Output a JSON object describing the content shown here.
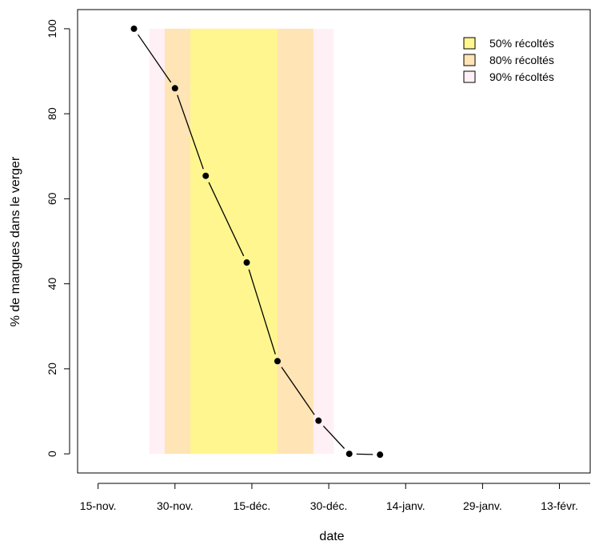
{
  "chart_data": {
    "type": "line",
    "xlabel": "date",
    "ylabel": "% de mangues dans le verger",
    "x_ticks": [
      "15-nov.",
      "30-nov.",
      "15-déc.",
      "30-déc.",
      "14-janv.",
      "29-janv.",
      "13-févr."
    ],
    "y_ticks": [
      "0",
      "20",
      "40",
      "60",
      "80",
      "100"
    ],
    "xlim": [
      "2023-11-11",
      "2024-02-19"
    ],
    "ylim": [
      -4.5,
      104.5
    ],
    "series": [
      {
        "x": [
          "2023-11-22",
          "2023-11-30",
          "2023-12-06",
          "2023-12-14",
          "2023-12-20",
          "2023-12-28",
          "2024-01-03",
          "2024-01-09"
        ],
        "y": [
          100,
          86,
          65.4,
          45,
          21.8,
          7.8,
          0,
          -0.2
        ]
      }
    ],
    "bands": [
      {
        "label": "90% récoltés",
        "start": "2023-11-25",
        "end": "2023-12-31",
        "color": "#fff0f5"
      },
      {
        "label": "80% récoltés",
        "start": "2023-11-28",
        "end": "2023-12-27",
        "color": "#ffe4b5"
      },
      {
        "label": "50% récoltés",
        "start": "2023-12-03",
        "end": "2023-12-20",
        "color": "#fff68f"
      }
    ],
    "band_bottom": 0,
    "band_top": 100,
    "legend": {
      "position": "top-right",
      "items": [
        {
          "label": "50% récoltés",
          "color": "#fff68f"
        },
        {
          "label": "80% récoltés",
          "color": "#ffe4b5"
        },
        {
          "label": "90% récoltés",
          "color": "#fff0f5"
        }
      ]
    },
    "grid": false
  }
}
